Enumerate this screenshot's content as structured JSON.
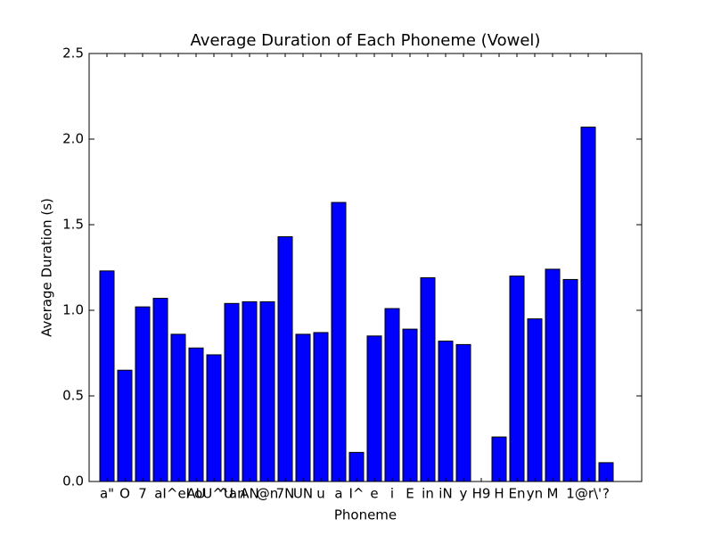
{
  "chart_data": {
    "type": "bar",
    "title": "Average Duration of Each Phoneme (Vowel)",
    "x_label": "Phoneme",
    "y_label": "Average Duration (s)",
    "categories": [
      "a\"",
      "O",
      "7",
      "aI",
      "^eI",
      "AU",
      "oU^U",
      "^an",
      "AN",
      "@n",
      "7N",
      "UN",
      "u",
      "a",
      "I^",
      "e",
      "i",
      "E",
      "in",
      "iN",
      "y",
      "H9",
      "H",
      "En",
      "yn",
      "M",
      "1",
      "@r\\'",
      "?"
    ],
    "values": [
      1.23,
      0.65,
      1.02,
      1.07,
      0.86,
      0.78,
      0.74,
      1.04,
      1.05,
      1.05,
      1.43,
      0.86,
      0.87,
      1.63,
      0.17,
      0.85,
      1.01,
      0.89,
      1.19,
      0.82,
      0.8,
      0,
      0.26,
      1.2,
      0.95,
      1.24,
      1.18,
      2.07,
      0.11
    ],
    "color": "#0000ff",
    "ylim": [
      0,
      2.5
    ],
    "yticks": [
      {
        "value": 0,
        "label": "0.0"
      },
      0.5,
      {
        "value": 1,
        "label": "1.0"
      },
      1.5,
      {
        "value": 2,
        "label": "2.0"
      },
      2.5
    ]
  }
}
